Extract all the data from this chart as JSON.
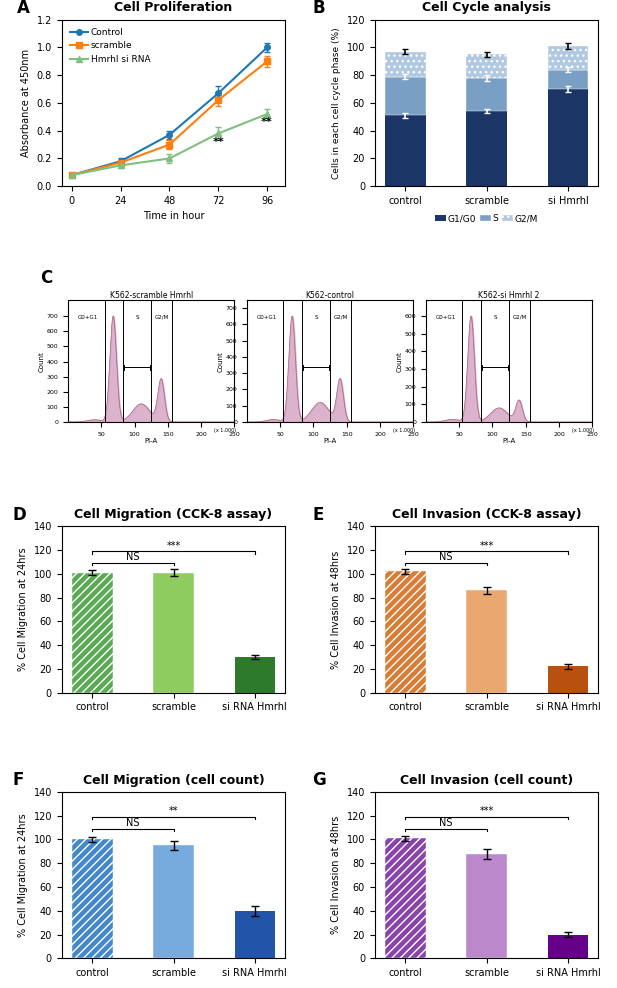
{
  "panel_A": {
    "title": "Cell Proliferation",
    "xlabel": "Time in hour",
    "ylabel": "Absorbance at 450nm",
    "x": [
      0,
      24,
      48,
      72,
      96
    ],
    "control": [
      0.08,
      0.18,
      0.37,
      0.67,
      1.0
    ],
    "control_err": [
      0.01,
      0.02,
      0.03,
      0.05,
      0.03
    ],
    "scramble": [
      0.08,
      0.17,
      0.3,
      0.62,
      0.9
    ],
    "scramble_err": [
      0.01,
      0.02,
      0.03,
      0.04,
      0.04
    ],
    "hmrhl": [
      0.08,
      0.15,
      0.2,
      0.38,
      0.52
    ],
    "hmrhl_err": [
      0.01,
      0.02,
      0.03,
      0.05,
      0.04
    ],
    "control_color": "#1f77b4",
    "scramble_color": "#ff7f0e",
    "hmrhl_color": "#7fbf7f",
    "ylim": [
      0,
      1.2
    ],
    "yticks": [
      0.0,
      0.2,
      0.4,
      0.6,
      0.8,
      1.0,
      1.2
    ]
  },
  "panel_B": {
    "title": "Cell Cycle analysis",
    "ylabel": "Cells in each cell cycle phase (%)",
    "categories": [
      "control",
      "scramble",
      "si Hmrhl"
    ],
    "G1G0": [
      51,
      54,
      70
    ],
    "G1G0_err": [
      2,
      1.5,
      2
    ],
    "S": [
      28,
      24,
      14
    ],
    "S_err": [
      2,
      2,
      2
    ],
    "G2M": [
      18,
      17,
      17
    ],
    "G2M_err": [
      2,
      2,
      2
    ],
    "total_err": [
      2,
      1.5,
      2
    ],
    "G1G0_color": "#1a3566",
    "S_color": "#7a9fc4",
    "G2M_color": "#b0c8e0",
    "ylim": [
      0,
      120
    ],
    "yticks": [
      0,
      20,
      40,
      60,
      80,
      100,
      120
    ]
  },
  "panel_D": {
    "title": "Cell Migration (CCK-8 assay)",
    "ylabel": "% Cell Migration at 24hrs",
    "categories": [
      "control",
      "scramble",
      "si RNA Hmrhl"
    ],
    "values": [
      101,
      101,
      30
    ],
    "errors": [
      2,
      3,
      2
    ],
    "colors": [
      "#5aaa55",
      "#8fcc60",
      "#2d7a2d"
    ],
    "ylim": [
      0,
      140
    ],
    "yticks": [
      0,
      20,
      40,
      60,
      80,
      100,
      120,
      140
    ]
  },
  "panel_E": {
    "title": "Cell Invasion (CCK-8 assay)",
    "ylabel": "% Cell Invasion at 48hrs",
    "categories": [
      "control",
      "scramble",
      "si RNA Hmrhl"
    ],
    "values": [
      102,
      86,
      22
    ],
    "errors": [
      2,
      3,
      2
    ],
    "colors": [
      "#d97c35",
      "#e8a870",
      "#b85010"
    ],
    "ylim": [
      0,
      140
    ],
    "yticks": [
      0,
      20,
      40,
      60,
      80,
      100,
      120,
      140
    ]
  },
  "panel_F": {
    "title": "Cell Migration (cell count)",
    "ylabel": "% Cell Migration at 24hrs",
    "categories": [
      "control",
      "scramble",
      "si RNA Hmrhl"
    ],
    "values": [
      100,
      95,
      40
    ],
    "errors": [
      2,
      4,
      4
    ],
    "colors": [
      "#4488cc",
      "#77aadd",
      "#2255aa"
    ],
    "ylim": [
      0,
      140
    ],
    "yticks": [
      0,
      20,
      40,
      60,
      80,
      100,
      120,
      140
    ]
  },
  "panel_G": {
    "title": "Cell Invasion (cell count)",
    "ylabel": "% Cell Invasion at 48hrs",
    "categories": [
      "control",
      "scramble",
      "si RNA Hmrhl"
    ],
    "values": [
      101,
      88,
      20
    ],
    "errors": [
      2,
      4,
      2
    ],
    "colors": [
      "#8844aa",
      "#bb88cc",
      "#660088"
    ],
    "ylim": [
      0,
      140
    ],
    "yticks": [
      0,
      20,
      40,
      60,
      80,
      100,
      120,
      140
    ]
  },
  "panel_C": {
    "labels": [
      "K562-scramble Hmrhl",
      "K562-control",
      "K562-si Hmrhl 2"
    ],
    "facecolor": "#f5f0f5"
  }
}
